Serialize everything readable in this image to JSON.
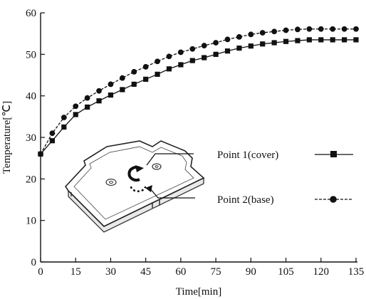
{
  "chart_data": {
    "type": "line",
    "title": "",
    "xlabel": "Time[min]",
    "ylabel": "Temperature[℃]",
    "xlim": [
      0,
      135
    ],
    "ylim": [
      0,
      60
    ],
    "x_ticks": [
      "0",
      "15",
      "30",
      "45",
      "60",
      "75",
      "90",
      "105",
      "120",
      "135"
    ],
    "y_ticks": [
      "0",
      "10",
      "20",
      "30",
      "40",
      "50",
      "60"
    ],
    "grid": false,
    "legend_position": "center-right",
    "x": [
      0,
      5,
      10,
      15,
      20,
      25,
      30,
      35,
      40,
      45,
      50,
      55,
      60,
      65,
      70,
      75,
      80,
      85,
      90,
      95,
      100,
      105,
      110,
      115,
      120,
      125,
      130,
      135
    ],
    "series": [
      {
        "name": "Point 1(cover)",
        "marker": "square",
        "line": "solid",
        "values": [
          26.0,
          29.2,
          32.5,
          35.5,
          37.3,
          38.8,
          40.2,
          41.5,
          42.8,
          44.0,
          45.2,
          46.5,
          47.5,
          48.5,
          49.2,
          50.0,
          50.8,
          51.5,
          52.0,
          52.5,
          52.8,
          53.1,
          53.3,
          53.5,
          53.5,
          53.5,
          53.5,
          53.5
        ]
      },
      {
        "name": "Point 2(base)",
        "marker": "circle",
        "line": "dashed",
        "values": [
          26.0,
          31.0,
          34.8,
          37.5,
          39.5,
          41.2,
          42.8,
          44.3,
          45.8,
          47.0,
          48.3,
          49.5,
          50.5,
          51.3,
          52.1,
          52.8,
          53.6,
          54.2,
          54.8,
          55.2,
          55.5,
          55.8,
          56.0,
          56.1,
          56.1,
          56.1,
          56.1,
          56.1
        ]
      }
    ]
  }
}
